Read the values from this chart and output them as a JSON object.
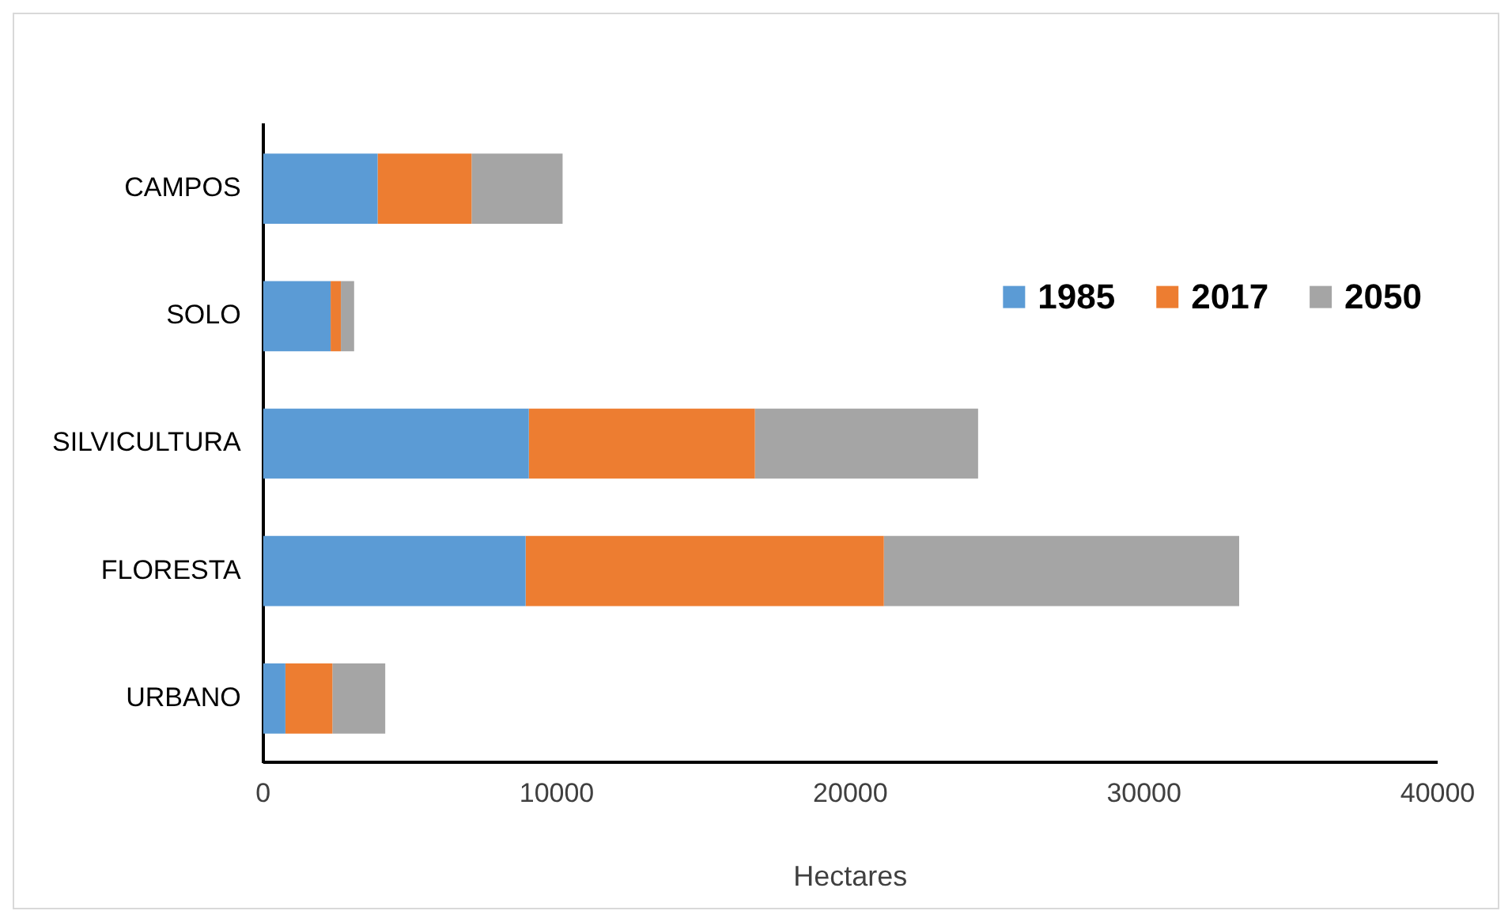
{
  "chart_data": {
    "type": "bar",
    "orientation": "horizontal",
    "stacked": true,
    "xlabel": "Hectares",
    "categories": [
      "CAMPOS",
      "SOLO",
      "SILVICULTURA",
      "FLORESTA",
      "URBANO"
    ],
    "series": [
      {
        "name": "1985",
        "color": "#5b9bd5",
        "values": [
          3900,
          2300,
          9050,
          8940,
          760
        ]
      },
      {
        "name": "2017",
        "color": "#ed7d31",
        "values": [
          3200,
          350,
          7700,
          12200,
          1600
        ]
      },
      {
        "name": "2050",
        "color": "#a5a5a5",
        "values": [
          3100,
          450,
          7600,
          12100,
          1800
        ]
      }
    ],
    "xlim": [
      0,
      40000
    ],
    "xticks": [
      0,
      10000,
      20000,
      30000,
      40000
    ],
    "grid": false,
    "legend": "top right"
  }
}
